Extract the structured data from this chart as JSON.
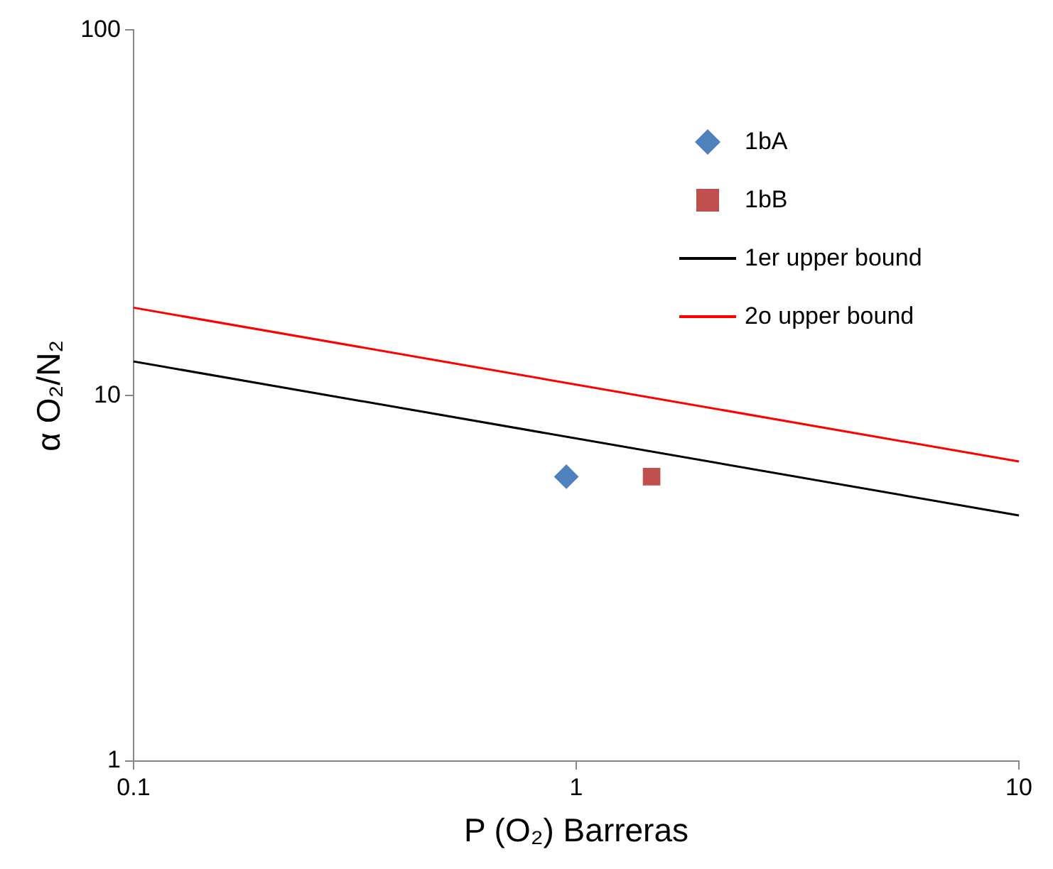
{
  "chart_data": {
    "type": "scatter",
    "xlabel": "P (O₂) Barreras",
    "ylabel": "α O₂/N₂",
    "log": "xy",
    "xlim": [
      0.1,
      10
    ],
    "ylim": [
      1,
      100
    ],
    "xticks": [
      0.1,
      1,
      10
    ],
    "yticks": [
      1,
      10,
      100
    ],
    "grid": false,
    "legend": "top right",
    "series": [
      {
        "name": "1bA",
        "marker": "diamond",
        "color": "#4f81bd",
        "x": [
          0.95
        ],
        "values": [
          6.0
        ]
      },
      {
        "name": "1bB",
        "marker": "square",
        "color": "#c0504d",
        "x": [
          1.48
        ],
        "values": [
          6.0
        ]
      },
      {
        "name": "1er upper bound",
        "type": "line",
        "marker": "none",
        "color": "#000000",
        "x": [
          0.1,
          10
        ],
        "values": [
          12.4,
          4.7
        ]
      },
      {
        "name": "2o upper bound",
        "type": "line",
        "marker": "none",
        "color": "#ff0000",
        "x": [
          0.1,
          10
        ],
        "values": [
          17.4,
          6.6
        ]
      }
    ]
  }
}
